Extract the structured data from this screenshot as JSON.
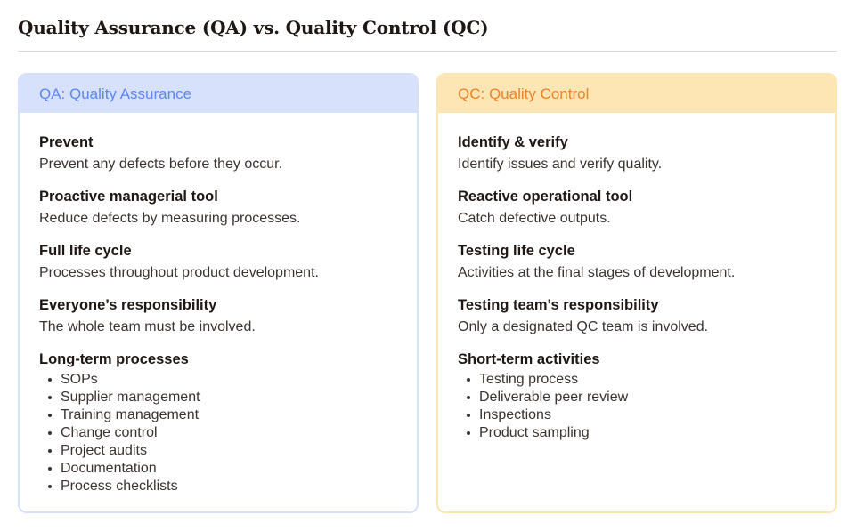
{
  "title": "Quality Assurance (QA) vs. Quality Control (QC)",
  "qa": {
    "header": "QA: Quality Assurance",
    "sections": [
      {
        "title": "Prevent",
        "desc": "Prevent any defects before they occur."
      },
      {
        "title": "Proactive managerial tool",
        "desc": "Reduce defects by measuring processes."
      },
      {
        "title": "Full life cycle",
        "desc": "Processes throughout product development."
      },
      {
        "title": "Everyone’s responsibility",
        "desc": "The whole team must be involved."
      }
    ],
    "list_title": "Long-term processes",
    "list": [
      "SOPs",
      "Supplier management",
      "Training management",
      "Change control",
      "Project audits",
      "Documentation",
      "Process checklists"
    ]
  },
  "qc": {
    "header": "QC: Quality Control",
    "sections": [
      {
        "title": "Identify & verify",
        "desc": "Identify issues and verify quality."
      },
      {
        "title": "Reactive operational tool",
        "desc": "Catch defective outputs."
      },
      {
        "title": "Testing life cycle",
        "desc": "Activities at the final stages of development."
      },
      {
        "title": "Testing team’s responsibility",
        "desc": "Only a designated QC team is involved."
      }
    ],
    "list_title": "Short-term activities",
    "list": [
      "Testing process",
      "Deliverable peer review",
      "Inspections",
      "Product sampling"
    ]
  },
  "colors": {
    "qa_accent": "#5c87f5",
    "qa_header_bg": "#d7e1fc",
    "qc_accent": "#f08327",
    "qc_header_bg": "#fde5b4"
  }
}
